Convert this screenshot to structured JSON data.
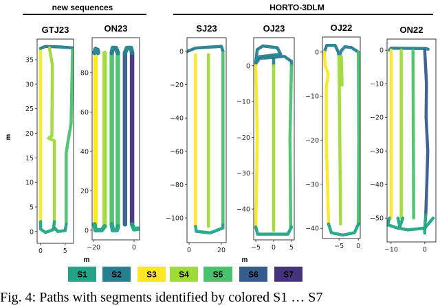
{
  "groups": {
    "new": "new sequences",
    "horto": "HORTO-3DLM"
  },
  "axis_label": "m",
  "legend": [
    {
      "label": "S1",
      "color": "#21a585"
    },
    {
      "label": "S2",
      "color": "#277f8e"
    },
    {
      "label": "S3",
      "color": "#fde725"
    },
    {
      "label": "S4",
      "color": "#a0da39"
    },
    {
      "label": "S5",
      "color": "#4ac16d"
    },
    {
      "label": "S6",
      "color": "#365c8d"
    },
    {
      "label": "S7",
      "color": "#46327e"
    }
  ],
  "caption": "Fig. 4: Paths with segments identified by colored S1 … S7",
  "chart_data": [
    {
      "type": "line",
      "title": "GTJ23",
      "xlabel": "m",
      "ylabel": "m",
      "xlim": [
        -0.7,
        6.7
      ],
      "ylim": [
        -2.4,
        39.2
      ],
      "xticks": [
        0,
        5
      ],
      "yticks": [
        0,
        5,
        10,
        15,
        20,
        25,
        30,
        35
      ],
      "paths": [
        {
          "s": "S3",
          "pts": [
            [
              0,
              2
            ],
            [
              0,
              37
            ]
          ]
        },
        {
          "s": "S2",
          "pts": [
            [
              0,
              37.3
            ],
            [
              1,
              37.7
            ],
            [
              4,
              37.6
            ],
            [
              6.5,
              37.4
            ]
          ]
        },
        {
          "s": "S4",
          "pts": [
            [
              1.8,
              37.4
            ],
            [
              2.4,
              34
            ],
            [
              2.3,
              19.5
            ],
            [
              1.6,
              19
            ],
            [
              2.8,
              18.5
            ],
            [
              2.8,
              2
            ]
          ]
        },
        {
          "s": "S5",
          "pts": [
            [
              6.5,
              37
            ],
            [
              6.2,
              22
            ],
            [
              5.6,
              18.5
            ],
            [
              5.2,
              16
            ],
            [
              5.2,
              1.5
            ]
          ]
        },
        {
          "s": "S1",
          "pts": [
            [
              0,
              2
            ],
            [
              0,
              0.5
            ],
            [
              1,
              -0.2
            ],
            [
              2.6,
              0.4
            ],
            [
              2.8,
              2
            ]
          ]
        },
        {
          "s": "S1",
          "pts": [
            [
              2.8,
              0.8
            ],
            [
              3.5,
              0
            ],
            [
              5,
              0.2
            ],
            [
              5.2,
              1.5
            ]
          ]
        }
      ]
    },
    {
      "type": "line",
      "title": "ON23",
      "xlabel": "m",
      "ylabel": "",
      "xlim": [
        -20.7,
        2.7
      ],
      "ylim": [
        -4.9,
        97.7
      ],
      "xticks": [
        -20,
        0
      ],
      "yticks": [
        0,
        20,
        40,
        60,
        80
      ],
      "wide": true,
      "paths": [
        {
          "s": "S3",
          "pts": [
            [
              -19,
              3
            ],
            [
              -19,
              90
            ]
          ]
        },
        {
          "s": "S4",
          "pts": [
            [
              -14.5,
              2
            ],
            [
              -14.5,
              90
            ]
          ]
        },
        {
          "s": "S5",
          "pts": [
            [
              -11,
              3
            ],
            [
              -11,
              90
            ]
          ]
        },
        {
          "s": "S5",
          "pts": [
            [
              -8,
              2
            ],
            [
              -8,
              90
            ]
          ]
        },
        {
          "s": "S6",
          "pts": [
            [
              -4.5,
              3
            ],
            [
              -4.5,
              90
            ]
          ]
        },
        {
          "s": "S7",
          "pts": [
            [
              -1,
              3
            ],
            [
              -1,
              90
            ]
          ]
        },
        {
          "s": "S2",
          "pts": [
            [
              -19.5,
              90
            ],
            [
              -19,
              92
            ],
            [
              -18,
              91.5
            ],
            [
              -17.8,
              90
            ]
          ]
        },
        {
          "s": "S2",
          "pts": [
            [
              -11,
              90
            ],
            [
              -10.5,
              92.5
            ],
            [
              -9,
              92.5
            ],
            [
              -8,
              90
            ]
          ]
        },
        {
          "s": "S2",
          "pts": [
            [
              -4.5,
              90
            ],
            [
              -3.5,
              92.5
            ],
            [
              -1.5,
              92.5
            ],
            [
              -1,
              90
            ]
          ]
        },
        {
          "s": "S1",
          "pts": [
            [
              -19.5,
              3
            ],
            [
              -19,
              0
            ],
            [
              -16,
              0
            ],
            [
              -14.5,
              2
            ]
          ]
        },
        {
          "s": "S1",
          "pts": [
            [
              -11,
              3
            ],
            [
              -10.5,
              0
            ],
            [
              -8.5,
              0
            ],
            [
              -8,
              2
            ]
          ]
        },
        {
          "s": "S1",
          "pts": [
            [
              -1,
              3
            ],
            [
              0,
              0.5
            ],
            [
              2,
              0.8
            ]
          ]
        }
      ]
    },
    {
      "type": "line",
      "title": "SJ23",
      "xlabel": "",
      "ylabel": "",
      "xlim": [
        -1.3,
        23
      ],
      "ylim": [
        -114.8,
        8.2
      ],
      "xticks": [
        0,
        20
      ],
      "yticks": [
        0,
        -20,
        -40,
        -60,
        -80,
        -100
      ],
      "paths": [
        {
          "s": "S2",
          "pts": [
            [
              -1,
              0
            ],
            [
              4,
              2
            ],
            [
              12,
              2.5
            ],
            [
              20,
              3
            ],
            [
              21,
              0
            ]
          ]
        },
        {
          "s": "S3",
          "pts": [
            [
              4,
              -2
            ],
            [
              4,
              -105
            ]
          ]
        },
        {
          "s": "S4",
          "pts": [
            [
              12,
              -2
            ],
            [
              12,
              -105
            ]
          ]
        },
        {
          "s": "S5",
          "pts": [
            [
              21,
              -1
            ],
            [
              21,
              -104
            ]
          ]
        },
        {
          "s": "S1",
          "pts": [
            [
              4,
              -105
            ],
            [
              4.5,
              -108
            ],
            [
              13,
              -109
            ],
            [
              21,
              -106
            ],
            [
              21,
              -104
            ]
          ]
        }
      ]
    },
    {
      "type": "line",
      "title": "OJ23",
      "xlabel": "m",
      "ylabel": "",
      "xlim": [
        -5.6,
        5.8
      ],
      "ylim": [
        -48.6,
        7.8
      ],
      "xticks": [
        -5,
        0,
        5
      ],
      "yticks": [
        0,
        -10,
        -20,
        -30,
        -40
      ],
      "paths": [
        {
          "s": "S2",
          "pts": [
            [
              -5,
              1
            ],
            [
              -4.6,
              4.5
            ],
            [
              -3,
              5.5
            ],
            [
              1,
              5
            ],
            [
              2,
              3.2
            ],
            [
              -4,
              2.5
            ],
            [
              -5,
              1
            ]
          ]
        },
        {
          "s": "S2",
          "pts": [
            [
              -5,
              0.5
            ],
            [
              -4,
              2
            ],
            [
              3,
              2.6
            ],
            [
              5,
              1.2
            ],
            [
              5,
              0
            ]
          ]
        },
        {
          "s": "S2",
          "pts": [
            [
              0,
              2.2
            ],
            [
              0,
              0
            ]
          ]
        },
        {
          "s": "S3",
          "pts": [
            [
              -5,
              0
            ],
            [
              -4.6,
              -20
            ],
            [
              -5,
              -45
            ]
          ]
        },
        {
          "s": "S4",
          "pts": [
            [
              0,
              0
            ],
            [
              0,
              -46
            ]
          ]
        },
        {
          "s": "S5",
          "pts": [
            [
              5,
              0
            ],
            [
              4.6,
              -20
            ],
            [
              4.8,
              -45
            ]
          ]
        },
        {
          "s": "S1",
          "pts": [
            [
              -5,
              -45
            ],
            [
              -4.5,
              -47
            ],
            [
              4,
              -47
            ],
            [
              5,
              -45
            ]
          ]
        }
      ]
    },
    {
      "type": "line",
      "title": "OJ22",
      "xlabel": "",
      "ylabel": "",
      "xlim": [
        -9.3,
        0.5
      ],
      "ylim": [
        -42.3,
        3.4
      ],
      "xticks": [
        -5,
        0
      ],
      "yticks": [
        0,
        -10,
        -20,
        -30,
        -40
      ],
      "paths": [
        {
          "s": "S2",
          "pts": [
            [
              -8.8,
              0
            ],
            [
              -8.2,
              1.5
            ],
            [
              -6,
              1.5
            ],
            [
              -5.2,
              0
            ],
            [
              -5,
              -1
            ],
            [
              -4.4,
              0.3
            ],
            [
              -3.5,
              1.2
            ],
            [
              -1.8,
              1
            ],
            [
              0,
              0
            ]
          ]
        },
        {
          "s": "S3",
          "pts": [
            [
              -8.8,
              0
            ],
            [
              -8.6,
              -3
            ],
            [
              -7.8,
              -5
            ],
            [
              -8.3,
              -8
            ],
            [
              -8.3,
              -20
            ],
            [
              -7.7,
              -39
            ]
          ]
        },
        {
          "s": "S4",
          "pts": [
            [
              -5,
              -1
            ],
            [
              -4.8,
              -20
            ],
            [
              -4.6,
              -39
            ]
          ]
        },
        {
          "s": "S4",
          "pts": [
            [
              -4.4,
              -1
            ],
            [
              -4.2,
              -7.5
            ]
          ]
        },
        {
          "s": "S5",
          "pts": [
            [
              0,
              0
            ],
            [
              0.1,
              -20
            ],
            [
              0,
              -39
            ]
          ]
        },
        {
          "s": "S1",
          "pts": [
            [
              -7.7,
              -39
            ],
            [
              -7,
              -41
            ],
            [
              -4,
              -41.5
            ],
            [
              -1,
              -41
            ],
            [
              0,
              -39
            ]
          ]
        }
      ]
    },
    {
      "type": "line",
      "title": "ON22",
      "xlabel": "",
      "ylabel": "",
      "xlim": [
        -11.2,
        3.3
      ],
      "ylim": [
        -57.1,
        3.3
      ],
      "xticks": [
        -10,
        0
      ],
      "yticks": [
        0,
        -10,
        -20,
        -30,
        -40,
        -50
      ],
      "paths": [
        {
          "s": "S2",
          "pts": [
            [
              -10.5,
              0
            ],
            [
              -10,
              0.6
            ],
            [
              0,
              0.5
            ],
            [
              1,
              0.3
            ]
          ]
        },
        {
          "s": "S3",
          "pts": [
            [
              -10,
              0
            ],
            [
              -10,
              -50
            ]
          ]
        },
        {
          "s": "S4",
          "pts": [
            [
              -7,
              0
            ],
            [
              -7,
              -50
            ]
          ]
        },
        {
          "s": "S5",
          "pts": [
            [
              -3.5,
              0
            ],
            [
              -3.3,
              -50
            ]
          ]
        },
        {
          "s": "S6",
          "pts": [
            [
              0,
              0
            ],
            [
              0.5,
              -10
            ],
            [
              0.4,
              -20
            ],
            [
              0.9,
              -30
            ],
            [
              0.6,
              -40
            ],
            [
              0.3,
              -49
            ]
          ]
        },
        {
          "s": "S1",
          "pts": [
            [
              -10.5,
              -50
            ],
            [
              -11,
              -52
            ],
            [
              -8,
              -53
            ],
            [
              -5,
              -53.5
            ],
            [
              0,
              -53
            ],
            [
              2.5,
              -50
            ]
          ]
        },
        {
          "s": "S1",
          "pts": [
            [
              -8,
              -50
            ],
            [
              -7.4,
              -52.5
            ],
            [
              -6.5,
              -50
            ]
          ]
        },
        {
          "s": "S1",
          "pts": [
            [
              0.3,
              -49
            ],
            [
              0,
              -53
            ],
            [
              0,
              -54.5
            ]
          ]
        }
      ]
    }
  ]
}
